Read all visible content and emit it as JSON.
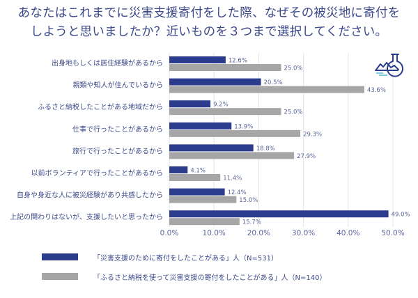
{
  "title": {
    "line1": "あなたはこれまでに災害支援寄付をした際、なぜその被災地に寄付を",
    "line2": "しようと思いましたか？近いものを３つまで選択してください。"
  },
  "colors": {
    "series1": "#2b3c8c",
    "series2": "#a6a6a6",
    "grid": "#e3e4ea"
  },
  "logo": {
    "icon": "flask-landscape-icon"
  },
  "chart_data": {
    "type": "bar",
    "orientation": "horizontal",
    "title": "あなたはこれまでに災害支援寄付をした際、なぜその被災地に寄付をしようと思いましたか？近いものを３つまで選択してください。",
    "xlabel": "",
    "ylabel": "",
    "xlim": [
      0,
      50
    ],
    "x_ticks": [
      "0.0%",
      "10.0%",
      "20.0%",
      "30.0%",
      "40.0%",
      "50.0%"
    ],
    "grid": true,
    "legend_position": "bottom-left",
    "categories": [
      "出身地もしくは居住経験があるから",
      "親類や知人が住んでいるから",
      "ふるさと納税したことがある地域だから",
      "仕事で行ったことがあるから",
      "旅行で行ったことがあるから",
      "以前ボランティアで行ったことがあるから",
      "自身や身近な人に被災経験があり共感したから",
      "上記の関わりはないが、支援したいと思ったから"
    ],
    "series": [
      {
        "name": "「災害支援のために寄付をしたことがある」人（N=531）",
        "values": [
          12.6,
          20.5,
          9.2,
          13.9,
          18.8,
          4.1,
          12.4,
          49.0
        ],
        "labels": [
          "12.6%",
          "20.5%",
          "9.2%",
          "13.9%",
          "18.8%",
          "4.1%",
          "12.4%",
          "49.0%"
        ]
      },
      {
        "name": "「ふるさと納税を使って災害支援の寄付をしたことがある」人（N=140）",
        "values": [
          25.0,
          43.6,
          25.0,
          29.3,
          27.9,
          11.4,
          15.0,
          15.7
        ],
        "labels": [
          "25.0%",
          "43.6%",
          "25.0%",
          "29.3%",
          "27.9%",
          "11.4%",
          "15.0%",
          "15.7%"
        ]
      }
    ]
  }
}
